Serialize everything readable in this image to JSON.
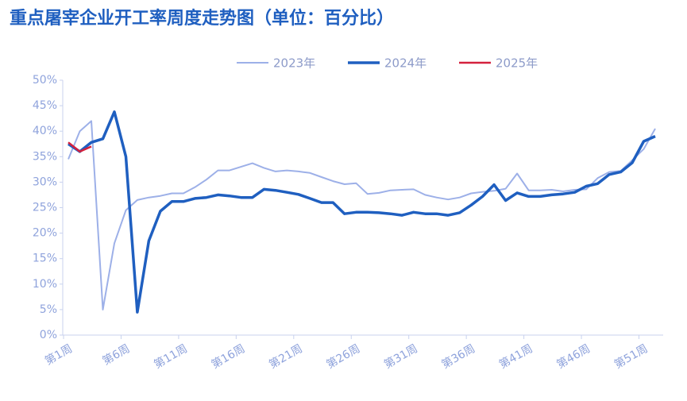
{
  "chart_data": {
    "type": "line",
    "title": "重点屠宰企业开工率周度走势图（单位：百分比）",
    "categories": [
      "第1周",
      null,
      null,
      null,
      null,
      "第6周",
      null,
      null,
      null,
      null,
      "第11周",
      null,
      null,
      null,
      null,
      "第16周",
      null,
      null,
      null,
      null,
      "第21周",
      null,
      null,
      null,
      null,
      "第26周",
      null,
      null,
      null,
      null,
      "第31周",
      null,
      null,
      null,
      null,
      "第36周",
      null,
      null,
      null,
      null,
      "第41周",
      null,
      null,
      null,
      null,
      "第46周",
      null,
      null,
      null,
      null,
      "第51周",
      null
    ],
    "series": [
      {
        "name": "2023年",
        "color": "#9db0e8",
        "width": 2,
        "values": [
          34.5,
          40,
          42,
          5,
          18,
          24.5,
          26.5,
          27,
          27.3,
          27.8,
          27.8,
          29,
          30.5,
          32.3,
          32.3,
          33,
          33.7,
          32.8,
          32.1,
          32.3,
          32.1,
          31.8,
          31,
          30.2,
          29.6,
          29.8,
          27.7,
          27.9,
          28.4,
          28.5,
          28.6,
          27.5,
          27,
          26.6,
          27,
          27.8,
          28.1,
          28.3,
          28.7,
          31.7,
          28.4,
          28.4,
          28.5,
          28.2,
          28.5,
          28.6,
          30.8,
          32,
          32.2,
          34.3,
          36.5,
          40.5
        ]
      },
      {
        "name": "2024年",
        "color": "#1f5fc0",
        "width": 3.5,
        "values": [
          37.5,
          36,
          37.8,
          38.5,
          43.8,
          35,
          4.5,
          18.5,
          24.3,
          26.2,
          26.2,
          26.8,
          27,
          27.5,
          27.3,
          27,
          27,
          28.6,
          28.4,
          28,
          27.6,
          26.8,
          26,
          26,
          23.8,
          24.1,
          24.1,
          24,
          23.8,
          23.5,
          24.1,
          23.8,
          23.8,
          23.5,
          24,
          25.5,
          27.2,
          29.5,
          26.4,
          27.9,
          27.2,
          27.2,
          27.5,
          27.7,
          28,
          29.2,
          29.7,
          31.5,
          32,
          33.8,
          38,
          39
        ]
      },
      {
        "name": "2025年",
        "color": "#d4213d",
        "width": 2.5,
        "values": [
          37.8,
          36,
          37,
          null,
          null,
          null,
          null,
          null,
          null,
          null,
          null,
          null,
          null,
          null,
          null,
          null,
          null,
          null,
          null,
          null,
          null,
          null,
          null,
          null,
          null,
          null,
          null,
          null,
          null,
          null,
          null,
          null,
          null,
          null,
          null,
          null,
          null,
          null,
          null,
          null,
          null,
          null,
          null,
          null,
          null,
          null,
          null,
          null,
          null,
          null,
          null,
          null
        ]
      }
    ],
    "ylim": [
      0,
      50
    ],
    "yticks": [
      {
        "value": 0,
        "label": "0%"
      },
      {
        "value": 5,
        "label": "5%"
      },
      {
        "value": 10,
        "label": "10%"
      },
      {
        "value": 15,
        "label": "15%"
      },
      {
        "value": 20,
        "label": "20%"
      },
      {
        "value": 25,
        "label": "25%"
      },
      {
        "value": 30,
        "label": "30%"
      },
      {
        "value": 35,
        "label": "35%"
      },
      {
        "value": 40,
        "label": "40%"
      },
      {
        "value": 45,
        "label": "45%"
      },
      {
        "value": 50,
        "label": "50%"
      }
    ],
    "legend": "top"
  }
}
